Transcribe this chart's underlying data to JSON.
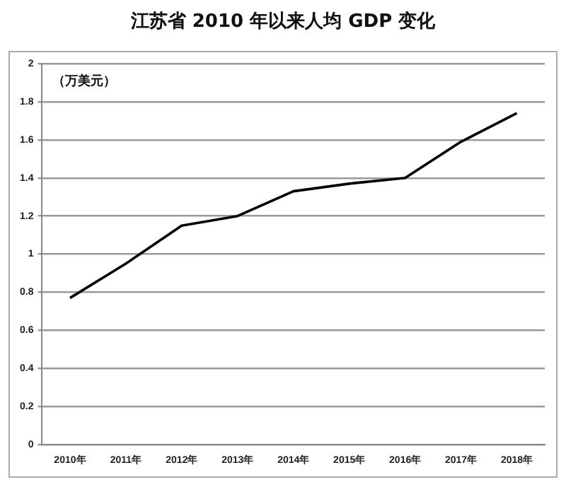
{
  "chart_data": {
    "type": "line",
    "title": "江苏省 2010 年以来人均 GDP 变化",
    "categories": [
      "2010年",
      "2011年",
      "2012年",
      "2013年",
      "2014年",
      "2015年",
      "2016年",
      "2017年",
      "2018年"
    ],
    "values": [
      0.77,
      0.95,
      1.15,
      1.2,
      1.33,
      1.37,
      1.4,
      1.59,
      1.74
    ],
    "color": "#000000",
    "ylim": [
      0,
      2
    ],
    "yticks": [
      0,
      0.2,
      0.4,
      0.6,
      0.8,
      1,
      1.2,
      1.4,
      1.6,
      1.8,
      2
    ],
    "grid": "y",
    "legend": false,
    "marker": "none",
    "line_style": "solid",
    "annotations": [
      "（万美元）"
    ]
  }
}
